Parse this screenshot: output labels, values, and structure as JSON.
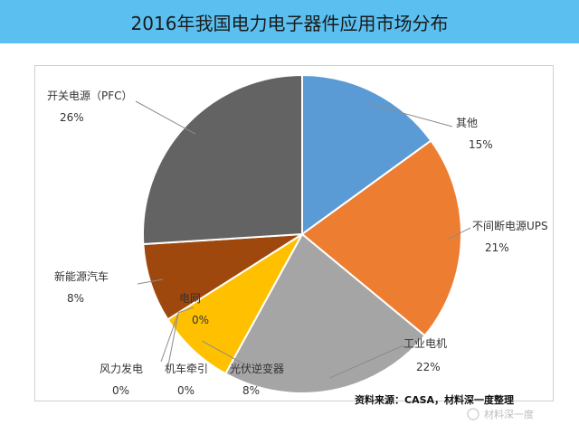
{
  "title": "2016年我国电力电子器件应用市场分布",
  "source_note": "资料来源：CASA，材料深一度整理",
  "watermark": "材料深一度",
  "chart_data": {
    "type": "pie",
    "title": "2016年我国电力电子器件应用市场分布",
    "slices": [
      {
        "label": "其他",
        "value": 15,
        "pct": "15%",
        "color": "#5b9bd5"
      },
      {
        "label": "不间断电源UPS",
        "value": 21,
        "pct": "21%",
        "color": "#ed7d31"
      },
      {
        "label": "工业电机",
        "value": 22,
        "pct": "22%",
        "color": "#a5a5a5"
      },
      {
        "label": "光伏逆变器",
        "value": 8,
        "pct": "8%",
        "color": "#ffc000"
      },
      {
        "label": "机车牵引",
        "value": 0,
        "pct": "0%",
        "color": "#4472c4"
      },
      {
        "label": "风力发电",
        "value": 0,
        "pct": "0%",
        "color": "#70ad47"
      },
      {
        "label": "电网",
        "value": 0,
        "pct": "0%",
        "color": "#264478"
      },
      {
        "label": "新能源汽车",
        "value": 8,
        "pct": "8%",
        "color": "#9e480e"
      },
      {
        "label": "开关电源（PFC）",
        "value": 26,
        "pct": "26%",
        "color": "#636363"
      }
    ]
  }
}
